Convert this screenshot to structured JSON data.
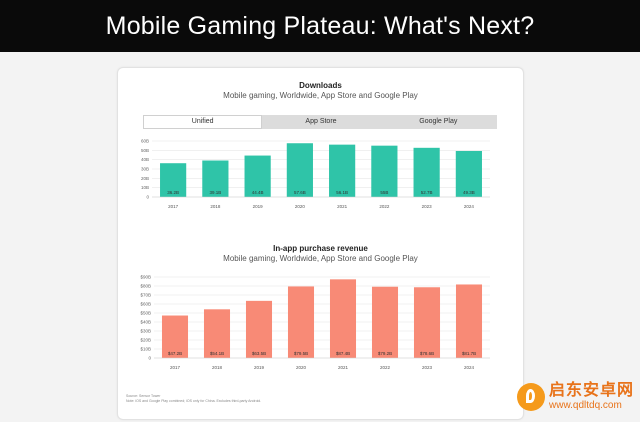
{
  "banner": {
    "title": "Mobile Gaming Plateau: What's Next?"
  },
  "tabs": [
    {
      "label": "Unified",
      "active": true
    },
    {
      "label": "App Store",
      "active": false
    },
    {
      "label": "Google Play",
      "active": false
    }
  ],
  "chart_data": [
    {
      "type": "bar",
      "title": "Downloads",
      "subtitle": "Mobile gaming, Worldwide, App Store and Google Play",
      "categories": [
        "2017",
        "2018",
        "2019",
        "2020",
        "2021",
        "2022",
        "2023",
        "2024"
      ],
      "values": [
        36.2,
        39.1,
        44.4,
        57.6,
        56.1,
        55.0,
        52.7,
        49.3
      ],
      "data_labels": [
        "36.2B",
        "39.1B",
        "44.4B",
        "57.6B",
        "56.1B",
        "55B",
        "52.7B",
        "49.3B"
      ],
      "yticks": [
        "0",
        "10B",
        "20B",
        "30B",
        "40B",
        "50B",
        "60B"
      ],
      "ylim": [
        0,
        60
      ],
      "color": "#2fc4a8",
      "grid": true
    },
    {
      "type": "bar",
      "title": "In-app purchase revenue",
      "subtitle": "Mobile gaming, Worldwide, App Store and Google Play",
      "categories": [
        "2017",
        "2018",
        "2019",
        "2020",
        "2021",
        "2022",
        "2023",
        "2024"
      ],
      "values": [
        47.2,
        54.1,
        63.5,
        79.5,
        87.4,
        79.2,
        78.6,
        81.7
      ],
      "data_labels": [
        "$47.2B",
        "$54.1B",
        "$63.5B",
        "$79.5B",
        "$87.4B",
        "$79.2B",
        "$78.6B",
        "$81.7B"
      ],
      "yticks": [
        "0",
        "$10B",
        "$20B",
        "$30B",
        "$40B",
        "$50B",
        "$60B",
        "$70B",
        "$80B",
        "$90B"
      ],
      "ylim": [
        0,
        90
      ],
      "color": "#f88a76",
      "grid": true
    }
  ],
  "footnote": {
    "line1": "Source: Sensor Tower",
    "line2": "Note: iOS and Google Play combined; iOS only for China. Excludes third-party Android."
  },
  "watermark": {
    "name": "启东安卓网",
    "url": "www.qdltdq.com"
  }
}
